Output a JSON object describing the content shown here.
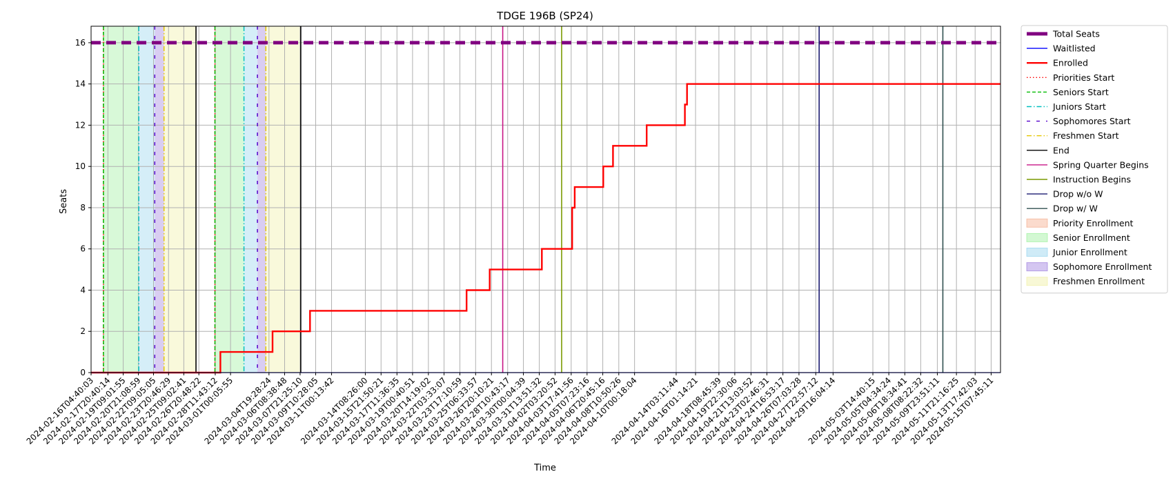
{
  "chart_data": {
    "type": "line",
    "title": "TDGE 196B (SP24)",
    "xlabel": "Time",
    "ylabel": "Seats",
    "ylim": [
      0,
      16.8
    ],
    "xlim": [
      "2024-02-16T04:40:03",
      "2024-05-16T06:00:00"
    ],
    "yticks": [
      0,
      2,
      4,
      6,
      8,
      10,
      12,
      14,
      16
    ],
    "xticks": [
      "2024-02-16T04:40:03",
      "2024-02-17T20:40:14",
      "2024-02-19T09:01:55",
      "2024-02-20T21:08:59",
      "2024-02-22T09:05:05",
      "2024-02-23T20:46:29",
      "2024-02-25T09:02:41",
      "2024-02-26T20:48:22",
      "2024-02-28T11:43:12",
      "2024-03-01T00:05:55",
      "2024-03-04T19:28:24",
      "2024-03-06T08:38:48",
      "2024-03-07T21:25:10",
      "2024-03-09T10:28:05",
      "2024-03-11T00:13:42",
      "2024-03-14T08:26:00",
      "2024-03-15T21:50:21",
      "2024-03-17T11:36:35",
      "2024-03-19T00:40:51",
      "2024-03-20T14:19:02",
      "2024-03-22T03:33:07",
      "2024-03-23T17:10:59",
      "2024-03-25T06:33:57",
      "2024-03-26T20:10:21",
      "2024-03-28T10:43:17",
      "2024-03-30T00:04:39",
      "2024-03-31T13:51:32",
      "2024-04-02T03:20:52",
      "2024-04-03T17:41:56",
      "2024-04-05T07:23:16",
      "2024-04-06T20:45:16",
      "2024-04-08T10:50:26",
      "2024-04-10T00:18:04",
      "2024-04-14T03:11:44",
      "2024-04-16T01:14:21",
      "2024-04-18T08:45:39",
      "2024-04-19T22:30:06",
      "2024-04-21T13:03:52",
      "2024-04-23T02:46:31",
      "2024-04-24T16:53:17",
      "2024-04-26T07:03:28",
      "2024-04-27T22:57:12",
      "2024-04-29T16:04:14",
      "2024-05-03T14:40:15",
      "2024-05-05T04:34:24",
      "2024-05-06T18:34:41",
      "2024-05-08T08:22:32",
      "2024-05-09T23:51:11",
      "2024-05-11T21:16:25",
      "2024-05-13T17:42:03",
      "2024-05-15T07:45:11"
    ],
    "total_seats": 16,
    "series": [
      {
        "name": "Enrolled",
        "color": "#ff0000",
        "points": [
          [
            "2024-02-16T04:40:03",
            0
          ],
          [
            "2024-02-29T00:00:00",
            0
          ],
          [
            "2024-02-29T00:00:00",
            1
          ],
          [
            "2024-03-05T04:00:00",
            1
          ],
          [
            "2024-03-05T04:00:00",
            2
          ],
          [
            "2024-03-08T21:00:00",
            2
          ],
          [
            "2024-03-08T21:00:00",
            3
          ],
          [
            "2024-03-24T09:00:00",
            3
          ],
          [
            "2024-03-24T09:00:00",
            4
          ],
          [
            "2024-03-26T16:00:00",
            4
          ],
          [
            "2024-03-26T16:00:00",
            5
          ],
          [
            "2024-03-31T20:00:00",
            5
          ],
          [
            "2024-03-31T20:00:00",
            6
          ],
          [
            "2024-04-03T20:00:00",
            6
          ],
          [
            "2024-04-03T20:00:00",
            8
          ],
          [
            "2024-04-04T02:00:00",
            8
          ],
          [
            "2024-04-04T02:00:00",
            9
          ],
          [
            "2024-04-06T22:00:00",
            9
          ],
          [
            "2024-04-06T22:00:00",
            10
          ],
          [
            "2024-04-07T21:00:00",
            10
          ],
          [
            "2024-04-07T21:00:00",
            11
          ],
          [
            "2024-04-11T05:00:00",
            11
          ],
          [
            "2024-04-11T05:00:00",
            12
          ],
          [
            "2024-04-15T00:00:00",
            12
          ],
          [
            "2024-04-15T00:00:00",
            13
          ],
          [
            "2024-04-15T05:00:00",
            13
          ],
          [
            "2024-04-15T05:00:00",
            14
          ],
          [
            "2024-05-16T06:00:00",
            14
          ]
        ]
      },
      {
        "name": "Waitlisted",
        "color": "#0000ff",
        "points": [
          [
            "2024-02-16T04:40:03",
            0
          ],
          [
            "2024-05-16T06:00:00",
            0
          ]
        ]
      }
    ],
    "shaded_periods": [
      {
        "name": "Senior Enrollment",
        "color": "#90ee90",
        "start": "2024-02-17T10:00:00",
        "end": "2024-02-20T22:00:00"
      },
      {
        "name": "Junior Enrollment",
        "color": "#87ceeb",
        "start": "2024-02-20T22:00:00",
        "end": "2024-02-22T12:00:00"
      },
      {
        "name": "Sophomore Enrollment",
        "color": "#9370db",
        "start": "2024-02-22T12:00:00",
        "end": "2024-02-23T10:00:00"
      },
      {
        "name": "Freshmen Enrollment",
        "color": "#eeee99",
        "start": "2024-02-23T10:00:00",
        "end": "2024-02-26T14:00:00"
      },
      {
        "name": "Senior Enrollment",
        "color": "#90ee90",
        "start": "2024-02-28T11:00:00",
        "end": "2024-03-02T08:00:00"
      },
      {
        "name": "Junior Enrollment",
        "color": "#87ceeb",
        "start": "2024-03-02T08:00:00",
        "end": "2024-03-03T16:00:00"
      },
      {
        "name": "Sophomore Enrollment",
        "color": "#9370db",
        "start": "2024-03-03T16:00:00",
        "end": "2024-03-04T12:00:00"
      },
      {
        "name": "Freshmen Enrollment",
        "color": "#eeee99",
        "start": "2024-03-04T12:00:00",
        "end": "2024-03-07T23:00:00"
      }
    ],
    "event_lines": [
      {
        "name": "Priorities Start",
        "color": "#ff0000",
        "style": "dotted",
        "x": "2024-02-17T10:00:00"
      },
      {
        "name": "Seniors Start",
        "color": "#00bb00",
        "style": "dashed",
        "x": "2024-02-17T10:00:00"
      },
      {
        "name": "Juniors Start",
        "color": "#00bfbf",
        "style": "dashdot",
        "x": "2024-02-20T22:00:00"
      },
      {
        "name": "Sophomores Start",
        "color": "#5500cc",
        "style": "loosedash",
        "x": "2024-02-22T12:00:00"
      },
      {
        "name": "Freshmen Start",
        "color": "#e5c700",
        "style": "dashdot",
        "x": "2024-02-23T10:00:00"
      },
      {
        "name": "End",
        "color": "#000000",
        "style": "solid",
        "x": "2024-02-26T14:00:00"
      },
      {
        "name": "Priorities Start",
        "color": "#ff0000",
        "style": "dotted",
        "x": "2024-02-28T11:00:00"
      },
      {
        "name": "Seniors Start",
        "color": "#00bb00",
        "style": "dashed",
        "x": "2024-02-28T11:00:00"
      },
      {
        "name": "Juniors Start",
        "color": "#00bfbf",
        "style": "dashdot",
        "x": "2024-03-02T08:00:00"
      },
      {
        "name": "Sophomores Start",
        "color": "#5500cc",
        "style": "loosedash",
        "x": "2024-03-03T16:00:00"
      },
      {
        "name": "Freshmen Start",
        "color": "#e5c700",
        "style": "dashdot",
        "x": "2024-03-04T12:00:00"
      },
      {
        "name": "End",
        "color": "#000000",
        "style": "solid",
        "x": "2024-03-07T23:00:00"
      },
      {
        "name": "Spring Quarter Begins",
        "color": "#c71585",
        "style": "solid",
        "x": "2024-03-27T23:00:00"
      },
      {
        "name": "Instruction Begins",
        "color": "#7a9a01",
        "style": "solid",
        "x": "2024-04-02T19:00:00"
      },
      {
        "name": "Drop w/o W",
        "color": "#191970",
        "style": "solid",
        "x": "2024-04-28T07:00:00"
      },
      {
        "name": "Drop w/ W",
        "color": "#2f4f4f",
        "style": "solid",
        "x": "2024-05-10T13:00:00"
      }
    ],
    "legend": {
      "position": "outside-right",
      "entries": [
        {
          "label": "Total Seats",
          "kind": "line",
          "color": "#800080",
          "style": "thickdash"
        },
        {
          "label": "Waitlisted",
          "kind": "line",
          "color": "#0000ff",
          "style": "solid"
        },
        {
          "label": "Enrolled",
          "kind": "line",
          "color": "#ff0000",
          "style": "solid-thick"
        },
        {
          "label": "Priorities Start",
          "kind": "line",
          "color": "#ff0000",
          "style": "dotted"
        },
        {
          "label": "Seniors Start",
          "kind": "line",
          "color": "#00bb00",
          "style": "dashed"
        },
        {
          "label": "Juniors Start",
          "kind": "line",
          "color": "#00bfbf",
          "style": "dashdot"
        },
        {
          "label": "Sophomores Start",
          "kind": "line",
          "color": "#5500cc",
          "style": "loosedash"
        },
        {
          "label": "Freshmen Start",
          "kind": "line",
          "color": "#e5c700",
          "style": "dashdot"
        },
        {
          "label": "End",
          "kind": "line",
          "color": "#000000",
          "style": "solid"
        },
        {
          "label": "Spring Quarter Begins",
          "kind": "line",
          "color": "#c71585",
          "style": "solid"
        },
        {
          "label": "Instruction Begins",
          "kind": "line",
          "color": "#7a9a01",
          "style": "solid"
        },
        {
          "label": "Drop w/o W",
          "kind": "line",
          "color": "#191970",
          "style": "solid"
        },
        {
          "label": "Drop w/ W",
          "kind": "line",
          "color": "#2f4f4f",
          "style": "solid"
        },
        {
          "label": "Priority Enrollment",
          "kind": "patch",
          "color": "#f4a582"
        },
        {
          "label": "Senior Enrollment",
          "kind": "patch",
          "color": "#90ee90"
        },
        {
          "label": "Junior Enrollment",
          "kind": "patch",
          "color": "#87ceeb"
        },
        {
          "label": "Sophomore Enrollment",
          "kind": "patch",
          "color": "#9370db"
        },
        {
          "label": "Freshmen Enrollment",
          "kind": "patch",
          "color": "#eeee99"
        }
      ]
    },
    "grid": true
  }
}
